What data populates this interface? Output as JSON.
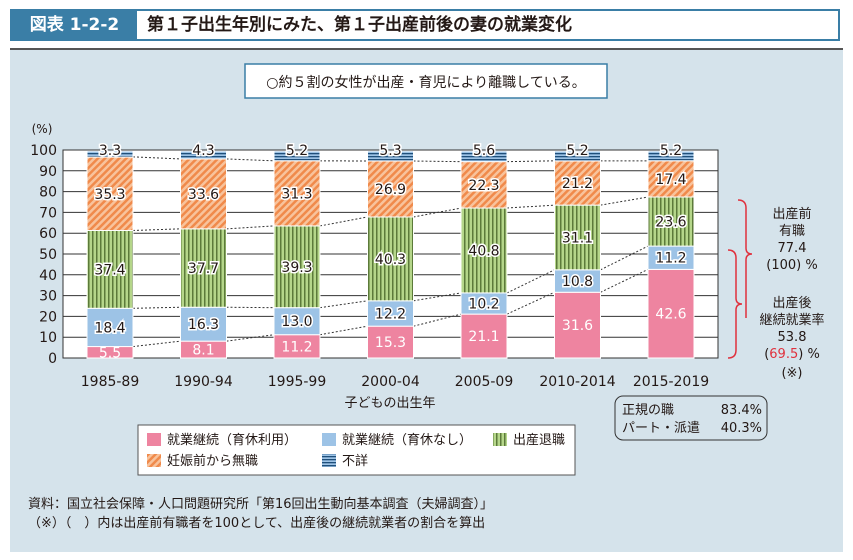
{
  "header": {
    "label": "図表 1-2-2",
    "title": "第１子出生年別にみた、第１子出産前後の妻の就業変化"
  },
  "callout": "○約５割の女性が出産・育児により離職している。",
  "chart_data": {
    "type": "bar",
    "stacked": true,
    "ylabel": "(%)",
    "xlabel": "子どもの出生年",
    "ylim": [
      0,
      100
    ],
    "yticks": [
      0,
      10,
      20,
      30,
      40,
      50,
      60,
      70,
      80,
      90,
      100
    ],
    "categories": [
      "1985-89",
      "1990-94",
      "1995-99",
      "2000-04",
      "2005-09",
      "2010-2014",
      "2015-2019"
    ],
    "series": [
      {
        "name": "就業継続（育休利用）",
        "color": "#ee84a0",
        "values": [
          5.5,
          8.1,
          11.2,
          15.3,
          21.1,
          31.6,
          42.6
        ]
      },
      {
        "name": "就業継続（育休なし）",
        "color": "#9dc3e6",
        "values": [
          18.4,
          16.3,
          13.0,
          12.2,
          10.2,
          10.8,
          11.2
        ]
      },
      {
        "name": "出産退職",
        "color": "#a9cf7a",
        "values": [
          37.4,
          37.7,
          39.3,
          40.3,
          40.8,
          31.1,
          23.6
        ]
      },
      {
        "name": "妊娠前から無職",
        "color": "#f4a46c",
        "values": [
          35.3,
          33.6,
          31.3,
          26.9,
          22.3,
          21.2,
          17.4
        ]
      },
      {
        "name": "不詳",
        "color": "#2f6f9a",
        "values": [
          3.3,
          4.3,
          5.2,
          5.3,
          5.6,
          5.2,
          5.2
        ]
      }
    ],
    "legend_position": "bottom"
  },
  "annotations": {
    "pre": [
      "出産前",
      "有職",
      "77.4",
      "(100) %"
    ],
    "post": [
      "出産後",
      "継続就業率",
      "53.8"
    ],
    "post_ratio": "69.5",
    "post_open": "(",
    "post_close": ") %",
    "note_mark": "(※)",
    "employment": [
      {
        "label": "正規の職",
        "value": "83.4%"
      },
      {
        "label": "パート・派遣",
        "value": "40.3%"
      }
    ]
  },
  "footer": [
    "資料：国立社会保障・人口問題研究所「第16回出生動向基本調査（夫婦調査）」",
    "（※）（　）内は出産前有職者を100として、出産後の継続就業者の割合を算出"
  ]
}
